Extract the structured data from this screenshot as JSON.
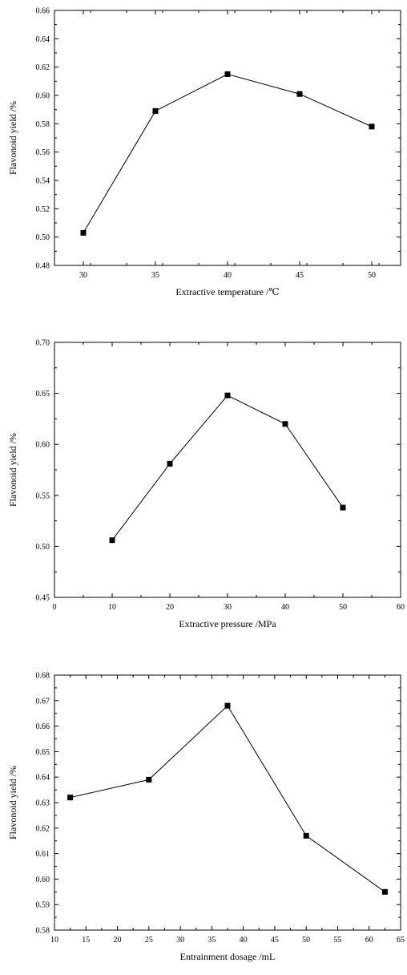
{
  "chart_data": [
    {
      "type": "line",
      "xlabel": "Extractive temperature  /℃",
      "ylabel": "Flavonoid yield  /%",
      "xlim": [
        28,
        52
      ],
      "ylim": [
        0.48,
        0.66
      ],
      "xticks": [
        30,
        35,
        40,
        45,
        50
      ],
      "yticks": [
        0.48,
        0.5,
        0.52,
        0.54,
        0.56,
        0.58,
        0.6,
        0.62,
        0.64,
        0.66
      ],
      "xtick_labels": [
        "30",
        "35",
        "40",
        "45",
        "50"
      ],
      "ytick_labels": [
        "0.48",
        "0.50",
        "0.52",
        "0.54",
        "0.56",
        "0.58",
        "0.60",
        "0.62",
        "0.64",
        "0.66"
      ],
      "series": [
        {
          "x": [
            30,
            35,
            40,
            45,
            50
          ],
          "values": [
            0.503,
            0.589,
            0.615,
            0.601,
            0.578
          ]
        }
      ],
      "marker": "square",
      "color": "#000000",
      "grid": false
    },
    {
      "type": "line",
      "xlabel": "Extractive pressure /MPa",
      "ylabel": "Flavonoid yield  /%",
      "xlim": [
        0,
        60
      ],
      "ylim": [
        0.45,
        0.7
      ],
      "xticks": [
        0,
        10,
        20,
        30,
        40,
        50,
        60
      ],
      "yticks": [
        0.45,
        0.5,
        0.55,
        0.6,
        0.65,
        0.7
      ],
      "xtick_labels": [
        "0",
        "10",
        "20",
        "30",
        "40",
        "50",
        "60"
      ],
      "ytick_labels": [
        "0.45",
        "0.50",
        "0.55",
        "0.60",
        "0.65",
        "0.70"
      ],
      "series": [
        {
          "x": [
            10,
            20,
            30,
            40,
            50
          ],
          "values": [
            0.506,
            0.581,
            0.648,
            0.62,
            0.538
          ]
        }
      ],
      "marker": "square",
      "color": "#000000",
      "grid": false
    },
    {
      "type": "line",
      "xlabel": "Entrainment dosage /mL",
      "ylabel": "Flavonoid yield  /%",
      "xlim": [
        10,
        65
      ],
      "ylim": [
        0.58,
        0.68
      ],
      "xticks": [
        10,
        15,
        20,
        25,
        30,
        35,
        40,
        45,
        50,
        55,
        60,
        65
      ],
      "yticks": [
        0.58,
        0.59,
        0.6,
        0.61,
        0.62,
        0.63,
        0.64,
        0.65,
        0.66,
        0.67,
        0.68
      ],
      "xtick_labels": [
        "10",
        "15",
        "20",
        "25",
        "30",
        "35",
        "40",
        "45",
        "50",
        "55",
        "60",
        "65"
      ],
      "ytick_labels": [
        "0.58",
        "0.59",
        "0.60",
        "0.61",
        "0.62",
        "0.63",
        "0.64",
        "0.65",
        "0.66",
        "0.67",
        "0.68"
      ],
      "series": [
        {
          "x": [
            12.5,
            25,
            37.5,
            50,
            62.5
          ],
          "values": [
            0.632,
            0.639,
            0.668,
            0.617,
            0.595
          ]
        }
      ],
      "marker": "square",
      "color": "#000000",
      "grid": false
    }
  ]
}
